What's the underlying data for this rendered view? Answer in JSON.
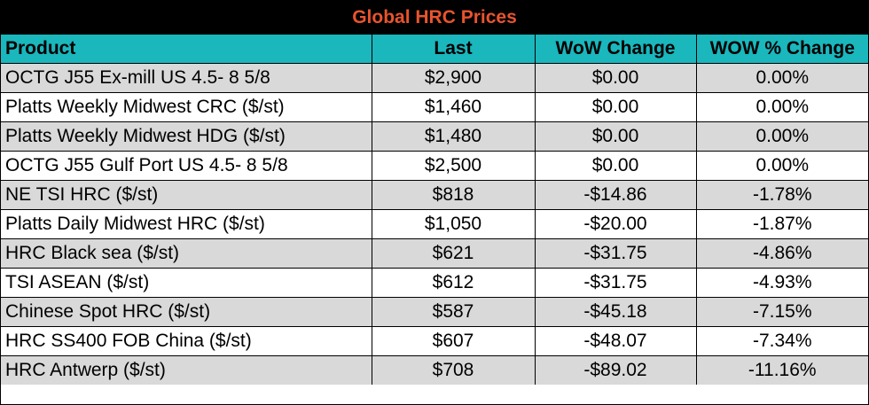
{
  "title": "Global HRC Prices",
  "columns": [
    "Product",
    "Last",
    "WoW Change",
    "WOW % Change"
  ],
  "rows": [
    [
      "OCTG J55 Ex-mill US 4.5- 8 5/8",
      "$2,900",
      "$0.00",
      "0.00%"
    ],
    [
      "Platts Weekly Midwest CRC ($/st)",
      "$1,460",
      "$0.00",
      "0.00%"
    ],
    [
      "Platts Weekly Midwest HDG ($/st)",
      "$1,480",
      "$0.00",
      "0.00%"
    ],
    [
      "OCTG J55 Gulf Port US 4.5- 8 5/8",
      "$2,500",
      "$0.00",
      "0.00%"
    ],
    [
      "NE TSI HRC ($/st)",
      "$818",
      "-$14.86",
      "-1.78%"
    ],
    [
      "Platts Daily Midwest HRC ($/st)",
      "$1,050",
      "-$20.00",
      "-1.87%"
    ],
    [
      "HRC Black sea ($/st)",
      "$621",
      "-$31.75",
      "-4.86%"
    ],
    [
      "TSI ASEAN ($/st)",
      "$612",
      "-$31.75",
      "-4.93%"
    ],
    [
      "Chinese Spot HRC ($/st)",
      "$587",
      "-$45.18",
      "-7.15%"
    ],
    [
      "HRC SS400 FOB China ($/st)",
      "$607",
      "-$48.07",
      "-7.34%"
    ],
    [
      "HRC Antwerp ($/st)",
      "$708",
      "-$89.02",
      "-11.16%"
    ]
  ],
  "colors": {
    "title_bg": "#000000",
    "title_text": "#e8542e",
    "header_bg": "#1ab7bd",
    "row_shaded": "#d9d9d9",
    "row_plain": "#ffffff"
  }
}
